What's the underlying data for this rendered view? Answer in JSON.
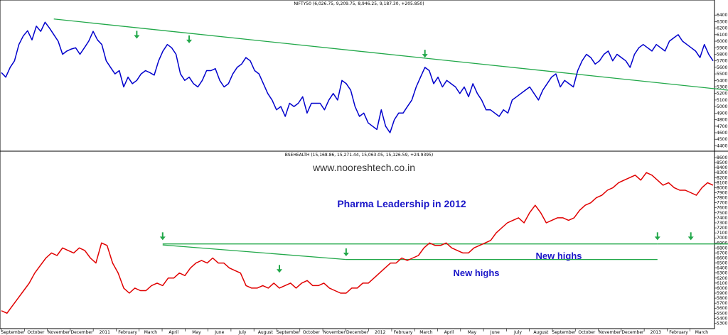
{
  "chart_data": [
    {
      "type": "line",
      "title": "NIFTY50 (6,026.75, 9,209.75, 8,946.25, 9,187.30, +205.850)",
      "ylim": [
        4350,
        6500
      ],
      "y_ticks": [
        6400,
        6300,
        6200,
        6100,
        6000,
        5900,
        5800,
        5700,
        5600,
        5500,
        5400,
        5300,
        5200,
        5100,
        5000,
        4900,
        4800,
        4700,
        4600,
        4500,
        4400
      ],
      "color": "#0000cc",
      "series": [
        {
          "values": [
            5520,
            5450,
            5600,
            5700,
            5950,
            6080,
            6160,
            6020,
            6230,
            6150,
            6290,
            6200,
            6100,
            6000,
            5800,
            5850,
            5880,
            5900,
            5800,
            5900,
            6000,
            6150,
            6020,
            5950,
            5700,
            5600,
            5500,
            5550,
            5300,
            5450,
            5350,
            5400,
            5500,
            5550,
            5520,
            5480,
            5700,
            5850,
            5950,
            5900,
            5800,
            5500,
            5400,
            5450,
            5350,
            5300,
            5400,
            5550,
            5550,
            5580,
            5400,
            5300,
            5350,
            5500,
            5600,
            5650,
            5750,
            5700,
            5550,
            5500,
            5350,
            5200,
            5100,
            4950,
            5000,
            4850,
            5050,
            5000,
            5050,
            5150,
            4900,
            5050,
            5050,
            5050,
            4950,
            5100,
            5200,
            5100,
            5400,
            5350,
            5250,
            5000,
            4850,
            4900,
            4750,
            4700,
            4650,
            4950,
            4700,
            4600,
            4800,
            4900,
            4900,
            5000,
            5100,
            5300,
            5450,
            5600,
            5550,
            5350,
            5450,
            5300,
            5400,
            5350,
            5300,
            5200,
            5300,
            5150,
            5350,
            5200,
            5100,
            4950,
            4950,
            4900,
            4850,
            4950,
            4900,
            5100,
            5150,
            5200,
            5250,
            5300,
            5200,
            5100,
            5250,
            5350,
            5450,
            5500,
            5300,
            5400,
            5350,
            5300,
            5550,
            5700,
            5800,
            5750,
            5650,
            5700,
            5800,
            5850,
            5700,
            5800,
            5750,
            5700,
            5600,
            5800,
            5900,
            5950,
            5900,
            5850,
            5950,
            5900,
            5850,
            6000,
            6050,
            6100,
            6000,
            5950,
            5900,
            5850,
            5750,
            5950,
            5800,
            5700
          ]
        }
      ],
      "trendlines": [
        [
          [
            12,
            6340
          ],
          [
            168,
            5240
          ]
        ]
      ],
      "arrow_points": [
        [
          31,
          6050
        ],
        [
          43,
          5980
        ],
        [
          97,
          5760
        ]
      ]
    },
    {
      "type": "line",
      "title": "BSEHEALTH (15,168.86, 15,271.44, 15,063.05, 15,126.59, +24.9395)",
      "ylim": [
        5250,
        8600
      ],
      "y_ticks": [
        8600,
        8500,
        8400,
        8300,
        8200,
        8100,
        8000,
        7900,
        7800,
        7700,
        7600,
        7500,
        7400,
        7300,
        7200,
        7100,
        7000,
        6900,
        6800,
        6700,
        6600,
        6500,
        6400,
        6300,
        6200,
        6100,
        6000,
        5900,
        5800,
        5700,
        5600,
        5500,
        5400,
        5300
      ],
      "color": "#e00000",
      "series": [
        {
          "values": [
            5550,
            5500,
            5650,
            5800,
            5950,
            6100,
            6300,
            6450,
            6600,
            6700,
            6650,
            6800,
            6750,
            6700,
            6800,
            6750,
            6600,
            6500,
            6900,
            6850,
            6500,
            6300,
            6000,
            5900,
            6000,
            5950,
            5950,
            6050,
            6100,
            6050,
            6200,
            6200,
            6300,
            6250,
            6400,
            6500,
            6550,
            6500,
            6600,
            6500,
            6500,
            6400,
            6350,
            6300,
            6050,
            6000,
            6000,
            6050,
            6000,
            6100,
            6000,
            6050,
            6100,
            6000,
            6100,
            6150,
            6050,
            6050,
            6100,
            6000,
            5950,
            5900,
            5900,
            6000,
            6000,
            6100,
            6100,
            6200,
            6300,
            6400,
            6500,
            6500,
            6600,
            6550,
            6600,
            6650,
            6800,
            6900,
            6850,
            6850,
            6900,
            6800,
            6750,
            6700,
            6700,
            6800,
            6850,
            6900,
            6950,
            7100,
            7200,
            7300,
            7350,
            7400,
            7300,
            7500,
            7650,
            7500,
            7300,
            7350,
            7400,
            7400,
            7350,
            7400,
            7550,
            7650,
            7700,
            7800,
            7850,
            7950,
            8000,
            8100,
            8150,
            8200,
            8250,
            8150,
            8300,
            8250,
            8150,
            8050,
            8100,
            8000,
            7950,
            7950,
            7900,
            7850,
            8000,
            8100,
            8050
          ]
        }
      ],
      "trendlines": [
        [
          [
            29,
            6880
          ],
          [
            118,
            6880
          ]
        ],
        [
          [
            29,
            6860
          ],
          [
            62,
            6570
          ]
        ],
        [
          [
            62,
            6570
          ],
          [
            118,
            6570
          ]
        ],
        [
          [
            118,
            6880
          ],
          [
            145,
            6880
          ]
        ]
      ],
      "arrow_points": [
        [
          29,
          6970
        ],
        [
          50,
          6320
        ],
        [
          62,
          6650
        ],
        [
          118,
          6970
        ],
        [
          124,
          6970
        ]
      ]
    }
  ],
  "x_labels": [
    "September",
    "October",
    "November",
    "December",
    "2011",
    "February",
    "March",
    "April",
    "May",
    "June",
    "July",
    "August",
    "September",
    "October",
    "November",
    "December",
    "2012",
    "February",
    "March",
    "April",
    "May",
    "June",
    "July",
    "August",
    "September",
    "October",
    "November",
    "December",
    "2013",
    "February",
    "March"
  ],
  "watermark": "www.nooreshtech.co.in",
  "annotations": {
    "title": "Pharma Leadership in 2012",
    "new_highs_1": "New highs",
    "new_highs_2": "New highs"
  },
  "colors": {
    "nifty": "#0000cc",
    "health": "#e00000",
    "trend": "#22a84a",
    "arrow": "#22a84a",
    "annotation": "#1a16c8"
  }
}
